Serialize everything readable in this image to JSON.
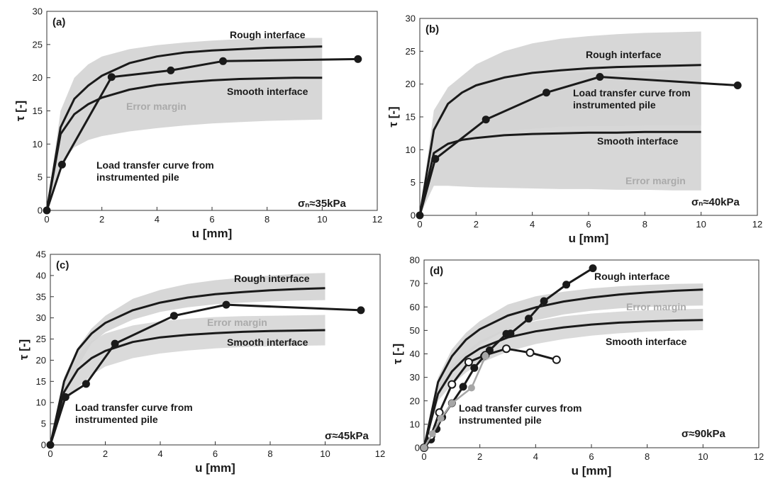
{
  "chart_data": [
    {
      "type": "line",
      "panel_label": "(a)",
      "xlabel": "u [mm]",
      "ylabel": "τ [-]",
      "xlim": [
        0,
        12
      ],
      "ylim": [
        0,
        30
      ],
      "xticks": [
        0,
        2,
        4,
        6,
        8,
        10,
        12
      ],
      "yticks": [
        0,
        5,
        10,
        15,
        20,
        25,
        30
      ],
      "condition": "σₙ≈35kPa",
      "labels": {
        "rough": "Rough interface",
        "smooth": "Smooth interface",
        "error": "Error margin",
        "pile": [
          "Load transfer curve from",
          "instrumented pile"
        ]
      },
      "bands": [
        {
          "x": [
            0,
            0.5,
            1,
            1.5,
            2,
            3,
            4,
            5,
            6,
            7,
            8,
            9,
            10
          ],
          "lower": [
            0,
            7,
            9.5,
            10.6,
            11.2,
            11.9,
            12.4,
            12.8,
            13.1,
            13.3,
            13.5,
            13.6,
            13.7
          ],
          "upper": [
            0,
            15,
            20,
            22,
            23.2,
            24.3,
            24.9,
            25.3,
            25.6,
            25.8,
            25.9,
            26,
            26
          ]
        }
      ],
      "series": [
        {
          "name": "Rough interface",
          "x": [
            0,
            0.5,
            1,
            1.5,
            2,
            3,
            4,
            5,
            6,
            7,
            8,
            9,
            10
          ],
          "y": [
            0,
            12.5,
            16.8,
            18.8,
            20.3,
            22.2,
            23.2,
            23.8,
            24.1,
            24.3,
            24.5,
            24.6,
            24.7
          ],
          "markers": false
        },
        {
          "name": "Smooth interface",
          "x": [
            0,
            0.5,
            1,
            1.5,
            2,
            3,
            4,
            5,
            6,
            7,
            8,
            9,
            10
          ],
          "y": [
            0,
            11.5,
            14.5,
            16,
            17,
            18.2,
            18.9,
            19.3,
            19.6,
            19.8,
            19.9,
            20,
            20
          ],
          "markers": false
        },
        {
          "name": "Load transfer curve from instrumented pile",
          "x": [
            0,
            0.55,
            2.35,
            4.5,
            6.4,
            11.3
          ],
          "y": [
            0,
            6.9,
            20.1,
            21.1,
            22.5,
            22.8
          ],
          "markers": "filled"
        }
      ]
    },
    {
      "type": "line",
      "panel_label": "(b)",
      "xlabel": "u [mm]",
      "ylabel": "τ [-]",
      "xlim": [
        0,
        12
      ],
      "ylim": [
        0,
        30
      ],
      "xticks": [
        0,
        2,
        4,
        6,
        8,
        10,
        12
      ],
      "yticks": [
        0,
        5,
        10,
        15,
        20,
        25,
        30
      ],
      "condition": "σₙ≈40kPa",
      "labels": {
        "rough": "Rough interface",
        "smooth": "Smooth interface",
        "error": "Error margin",
        "pile": [
          "Load transfer curve from",
          "instrumented pile"
        ]
      },
      "bands": [
        {
          "x": [
            0,
            0.5,
            1,
            2,
            3,
            4,
            5,
            6,
            7,
            8,
            9,
            10
          ],
          "lower": [
            0,
            4.5,
            4.5,
            4.3,
            4.2,
            4.1,
            4,
            4,
            3.9,
            3.9,
            3.8,
            3.8
          ],
          "upper": [
            0,
            16,
            19.5,
            23,
            25,
            26.2,
            26.9,
            27.3,
            27.6,
            27.8,
            27.9,
            28
          ]
        },
        {
          "x": [
            0,
            0.5,
            1,
            2,
            3,
            4,
            5,
            6,
            7,
            8,
            9,
            10
          ],
          "lower": [
            0,
            9,
            10.5,
            12,
            12.8,
            13.2,
            13.5,
            13.6,
            13.6,
            13.7,
            13.7,
            13.7
          ],
          "upper": [
            0,
            13.5,
            17,
            19.8,
            20.8,
            21.3,
            21.6,
            21.8,
            21.9,
            22,
            22.1,
            22.2
          ]
        }
      ],
      "series": [
        {
          "name": "Rough interface",
          "x": [
            0,
            0.5,
            1,
            1.5,
            2,
            3,
            4,
            5,
            6,
            7,
            8,
            9,
            10
          ],
          "y": [
            0,
            13,
            17,
            18.7,
            19.8,
            21,
            21.7,
            22.1,
            22.4,
            22.6,
            22.7,
            22.8,
            22.9
          ],
          "markers": false
        },
        {
          "name": "Smooth interface",
          "x": [
            0,
            0.5,
            1,
            1.5,
            2,
            3,
            4,
            5,
            6,
            7,
            8,
            9,
            10
          ],
          "y": [
            0,
            9.5,
            10.9,
            11.5,
            11.8,
            12.2,
            12.4,
            12.5,
            12.6,
            12.6,
            12.7,
            12.7,
            12.7
          ],
          "markers": false
        },
        {
          "name": "Load transfer curve from instrumented pile",
          "x": [
            0,
            0.55,
            2.35,
            4.5,
            6.4,
            11.3
          ],
          "y": [
            0,
            8.6,
            14.6,
            18.7,
            21.1,
            19.8
          ],
          "markers": "filled"
        }
      ]
    },
    {
      "type": "line",
      "panel_label": "(c)",
      "xlabel": "u [mm]",
      "ylabel": "τ [-]",
      "xlim": [
        0,
        12
      ],
      "ylim": [
        0,
        45
      ],
      "xticks": [
        0,
        2,
        4,
        6,
        8,
        10,
        12
      ],
      "yticks": [
        0,
        5,
        10,
        15,
        20,
        25,
        30,
        35,
        40,
        45
      ],
      "condition": "σ≈45kPa",
      "labels": {
        "rough": "Rough interface",
        "smooth": "Smooth interface",
        "error": "Error margin",
        "pile": [
          "Load transfer curve from",
          "instrumented pile"
        ]
      },
      "bands": [
        {
          "x": [
            0,
            0.5,
            1,
            1.5,
            2,
            3,
            4,
            5,
            6,
            7,
            8,
            9,
            10
          ],
          "lower": [
            0,
            12,
            18.5,
            24,
            26.6,
            29.6,
            31.4,
            32.5,
            33.2,
            33.6,
            33.9,
            34.1,
            34.2
          ],
          "upper": [
            0,
            16,
            23,
            27.5,
            30.5,
            34.5,
            36.6,
            38,
            38.9,
            39.5,
            40,
            40.4,
            40.6
          ]
        },
        {
          "x": [
            0,
            0.5,
            1,
            1.5,
            2,
            3,
            4,
            5,
            6,
            7,
            8,
            9,
            10
          ],
          "lower": [
            0,
            10,
            13.5,
            16.5,
            18.5,
            20.5,
            21.6,
            22.3,
            22.8,
            23.1,
            23.3,
            23.4,
            23.5
          ],
          "upper": [
            0,
            15,
            21,
            24.5,
            26.3,
            28.2,
            29.2,
            29.8,
            30.2,
            30.4,
            30.5,
            30.6,
            30.7
          ]
        }
      ],
      "series": [
        {
          "name": "Rough interface",
          "x": [
            0,
            0.5,
            1,
            1.5,
            2,
            3,
            4,
            5,
            6,
            7,
            8,
            9,
            10
          ],
          "y": [
            0,
            15,
            22.5,
            26.3,
            28.8,
            31.8,
            33.6,
            34.8,
            35.6,
            36.1,
            36.5,
            36.8,
            37
          ],
          "markers": false
        },
        {
          "name": "Smooth interface",
          "x": [
            0,
            0.5,
            1,
            1.5,
            2,
            3,
            4,
            5,
            6,
            7,
            8,
            9,
            10
          ],
          "y": [
            0,
            12.5,
            17.8,
            20.5,
            22.2,
            24.3,
            25.4,
            26,
            26.4,
            26.7,
            26.9,
            27,
            27.1
          ],
          "markers": false
        },
        {
          "name": "Load transfer curve from instrumented pile",
          "x": [
            0,
            0.55,
            1.3,
            2.35,
            4.5,
            6.4,
            11.3
          ],
          "y": [
            0,
            11.3,
            14.4,
            23.9,
            30.5,
            33.1,
            31.8
          ],
          "markers": "filled"
        }
      ]
    },
    {
      "type": "line",
      "panel_label": "(d)",
      "xlabel": "u [mm]",
      "ylabel": "τ [-]",
      "xlim": [
        0,
        12
      ],
      "ylim": [
        0,
        80
      ],
      "xticks": [
        0,
        2,
        4,
        6,
        8,
        10,
        12
      ],
      "yticks": [
        0,
        10,
        20,
        30,
        40,
        50,
        60,
        70,
        80
      ],
      "condition": "σ≈90kPa",
      "labels": {
        "rough": "Rough interface",
        "smooth": "Smooth interface",
        "error": "Error margin",
        "pile": [
          "Load transfer curves from",
          "instrumented pile"
        ]
      },
      "bands": [
        {
          "x": [
            0,
            0.5,
            1,
            1.5,
            2,
            3,
            4,
            5,
            6,
            7,
            8,
            9,
            10
          ],
          "lower": [
            0,
            24,
            33,
            39,
            44,
            50.5,
            54.3,
            56.8,
            58.4,
            59.4,
            60,
            60.4,
            60.6
          ],
          "upper": [
            0,
            30,
            42,
            49,
            54,
            61,
            64.5,
            66.5,
            67.9,
            68.8,
            69.4,
            69.8,
            70
          ]
        },
        {
          "x": [
            0,
            0.5,
            1,
            1.5,
            2,
            3,
            4,
            5,
            6,
            7,
            8,
            9,
            10
          ],
          "lower": [
            0,
            20,
            27,
            32,
            36,
            41,
            44.2,
            46.3,
            47.8,
            48.8,
            49.5,
            49.9,
            50.1
          ],
          "upper": [
            0,
            26,
            35,
            41,
            45.5,
            51,
            54,
            56,
            57.2,
            58,
            58.6,
            59,
            59.2
          ]
        }
      ],
      "series": [
        {
          "name": "Rough interface",
          "x": [
            0,
            0.5,
            1,
            1.5,
            2,
            3,
            4,
            5,
            6,
            7,
            8,
            9,
            10
          ],
          "y": [
            0,
            28,
            39,
            46,
            50.5,
            56.3,
            59.8,
            62.3,
            64,
            65.3,
            66.2,
            66.9,
            67.4
          ],
          "markers": false
        },
        {
          "name": "Smooth interface",
          "x": [
            0,
            0.5,
            1,
            1.5,
            2,
            3,
            4,
            5,
            6,
            7,
            8,
            9,
            10
          ],
          "y": [
            0,
            23,
            32.5,
            38.5,
            42.3,
            47,
            49.6,
            51.3,
            52.5,
            53.3,
            53.8,
            54.2,
            54.4
          ],
          "markers": false
        },
        {
          "name": "Load transfer curves from instrumented pile",
          "x": [
            0,
            0.25,
            0.45,
            0.65,
            1.0,
            1.4,
            1.8,
            2.15,
            2.35,
            2.95,
            3.1,
            3.75,
            4.3,
            5.1,
            6.05
          ],
          "y": [
            0,
            3.5,
            8,
            13,
            19,
            26,
            34,
            39,
            41.5,
            48.5,
            48.7,
            55,
            62.5,
            69.5,
            76.5
          ],
          "markers": "filled"
        },
        {
          "name": "Load transfer curves from instrumented pile",
          "x": [
            0,
            0.25,
            0.55,
            1.0,
            1.6,
            2.2,
            2.95,
            3.8,
            4.75
          ],
          "y": [
            0,
            5,
            15,
            27,
            36.5,
            39.5,
            42.2,
            40.5,
            37.5
          ],
          "markers": "open"
        },
        {
          "name": "Load transfer curves from instrumented pile",
          "x": [
            0,
            0.3,
            0.6,
            1.0,
            1.7,
            2.2
          ],
          "y": [
            0,
            6,
            12.5,
            19,
            25.5,
            39
          ],
          "markers": "grey"
        }
      ]
    }
  ],
  "colors": {
    "line": "#1a1a1a",
    "band": "#d3d3d3",
    "band_overlap": "#bdbdbd",
    "error_label": "#aaaaaa",
    "grey_marker": "#a6a6a6"
  }
}
